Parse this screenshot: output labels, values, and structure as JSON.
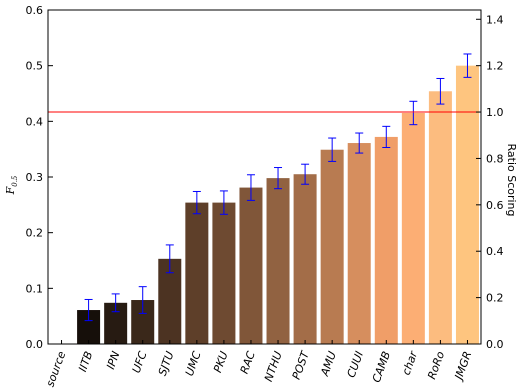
{
  "chart_data": {
    "type": "bar",
    "categories": [
      "source",
      "IITB",
      "IPN",
      "UFC",
      "SJTU",
      "UMC",
      "PKU",
      "RAC",
      "NTHU",
      "POST",
      "AMU",
      "CUUI",
      "CAMB",
      "char",
      "RoRo",
      "JMGR"
    ],
    "values": [
      null,
      0.061,
      0.074,
      0.079,
      0.153,
      0.254,
      0.254,
      0.281,
      0.298,
      0.305,
      0.349,
      0.361,
      0.372,
      0.415,
      0.454,
      0.5
    ],
    "error": [
      null,
      0.019,
      0.016,
      0.024,
      0.025,
      0.02,
      0.021,
      0.023,
      0.019,
      0.018,
      0.021,
      0.018,
      0.019,
      0.021,
      0.023,
      0.021
    ],
    "bar_colors": [
      "#000000",
      "#160f0a",
      "#271b12",
      "#3a281a",
      "#4c3322",
      "#5e3f29",
      "#6e4a31",
      "#805639",
      "#916241",
      "#a36d48",
      "#b87b51",
      "#d68e5e",
      "#f09e68",
      "#fcae74",
      "#fcbc7f",
      "#fec57f"
    ],
    "ylabel_left": "F",
    "ylabel_left_sub": "0.5",
    "ylabel_right": "Ratio Scoring",
    "ylim": [
      0,
      0.6
    ],
    "yticks": [
      "0.0",
      "0.1",
      "0.2",
      "0.3",
      "0.4",
      "0.5",
      "0.6"
    ],
    "ylim_right": [
      0,
      1.44
    ],
    "yticks_right": [
      "0.0",
      "0.2",
      "0.4",
      "0.6",
      "0.8",
      "1.0",
      "1.2",
      "1.4"
    ],
    "reference_line": 1.0,
    "reference_line_color": "#ff0000",
    "error_bar_color": "#0000ff",
    "grid": false
  }
}
